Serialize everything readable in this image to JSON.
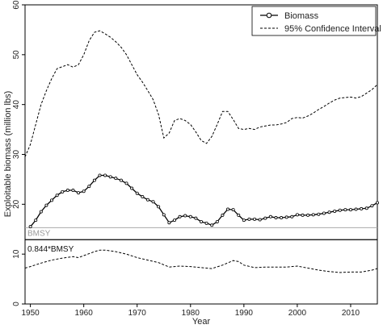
{
  "chart_data": {
    "type": "line",
    "xlabel": "Year",
    "ylabel": "Exploitable biomass (million lbs)",
    "xlim": [
      1949,
      2015
    ],
    "ylim": [
      0,
      60
    ],
    "xticks": [
      1950,
      1960,
      1970,
      1980,
      1990,
      2000,
      2010
    ],
    "yticks": [
      0,
      10,
      20,
      30,
      40,
      50,
      60
    ],
    "legend": {
      "position": "top-right"
    },
    "colors": {
      "biomass": "#000000",
      "ci": "#000000",
      "bmsy": "#aaaaaa",
      "bmsy_844": "#000000"
    },
    "series": [
      {
        "name": "Biomass",
        "style": "solid-circles",
        "x": [
          1950,
          1951,
          1952,
          1953,
          1954,
          1955,
          1956,
          1957,
          1958,
          1959,
          1960,
          1961,
          1962,
          1963,
          1964,
          1965,
          1966,
          1967,
          1968,
          1969,
          1970,
          1971,
          1972,
          1973,
          1974,
          1975,
          1976,
          1977,
          1978,
          1979,
          1980,
          1981,
          1982,
          1983,
          1984,
          1985,
          1986,
          1987,
          1988,
          1989,
          1990,
          1991,
          1992,
          1993,
          1994,
          1995,
          1996,
          1997,
          1998,
          1999,
          2000,
          2001,
          2002,
          2003,
          2004,
          2005,
          2006,
          2007,
          2008,
          2009,
          2010,
          2011,
          2012,
          2013,
          2014,
          2015
        ],
        "values": [
          15.5,
          16.8,
          18.5,
          19.8,
          20.8,
          21.8,
          22.5,
          22.8,
          22.8,
          22.3,
          22.6,
          23.6,
          24.8,
          25.8,
          25.8,
          25.5,
          25.2,
          24.8,
          24.2,
          23.2,
          22.2,
          21.5,
          20.9,
          20.5,
          19.5,
          17.9,
          16.3,
          16.8,
          17.5,
          17.7,
          17.5,
          17.2,
          16.5,
          16.2,
          15.8,
          16.5,
          17.8,
          19.0,
          18.9,
          17.8,
          16.8,
          17.0,
          17.0,
          16.9,
          17.2,
          17.5,
          17.3,
          17.3,
          17.4,
          17.5,
          17.9,
          17.8,
          17.8,
          17.9,
          18.0,
          18.2,
          18.4,
          18.6,
          18.8,
          18.9,
          18.9,
          19.0,
          19.1,
          19.2,
          19.7,
          20.3
        ]
      },
      {
        "name": "95% Confidence Interval",
        "style": "dashed",
        "bound": "upper",
        "x": [
          1949,
          1950,
          1951,
          1952,
          1953,
          1954,
          1955,
          1956,
          1957,
          1958,
          1959,
          1960,
          1961,
          1962,
          1963,
          1964,
          1965,
          1966,
          1967,
          1968,
          1969,
          1970,
          1971,
          1972,
          1973,
          1974,
          1975,
          1976,
          1977,
          1978,
          1979,
          1980,
          1981,
          1982,
          1983,
          1984,
          1985,
          1986,
          1987,
          1988,
          1989,
          1990,
          1991,
          1992,
          1993,
          1994,
          1995,
          1996,
          1997,
          1998,
          1999,
          2000,
          2001,
          2002,
          2003,
          2004,
          2005,
          2006,
          2007,
          2008,
          2009,
          2010,
          2011,
          2012,
          2013,
          2014,
          2015
        ],
        "values": [
          29.5,
          32.0,
          36.0,
          40.0,
          42.8,
          45.2,
          47.2,
          47.6,
          48.0,
          47.5,
          48.0,
          50.0,
          52.8,
          54.5,
          54.8,
          54.2,
          53.5,
          52.6,
          51.5,
          50.0,
          48.0,
          46.0,
          44.5,
          42.8,
          41.0,
          38.0,
          33.3,
          34.3,
          36.8,
          37.2,
          36.8,
          36.0,
          34.5,
          32.8,
          32.2,
          33.6,
          36.0,
          38.6,
          38.6,
          37.0,
          35.2,
          35.0,
          35.2,
          35.0,
          35.5,
          35.7,
          35.9,
          35.9,
          36.1,
          36.4,
          37.2,
          37.4,
          37.3,
          37.7,
          38.3,
          39.0,
          39.6,
          40.3,
          40.9,
          41.3,
          41.4,
          41.5,
          41.3,
          41.6,
          42.3,
          43.0,
          44.0
        ]
      },
      {
        "name": "",
        "style": "dashed",
        "bound": "lower",
        "x": [
          1949,
          1950,
          1952,
          1954,
          1956,
          1958,
          1959,
          1960,
          1962,
          1963,
          1964,
          1966,
          1968,
          1970,
          1972,
          1974,
          1976,
          1978,
          1980,
          1982,
          1984,
          1986,
          1988,
          1989,
          1990,
          1992,
          1994,
          1996,
          1998,
          2000,
          2002,
          2004,
          2006,
          2008,
          2010,
          2012,
          2014,
          2015
        ],
        "values": [
          7.2,
          7.5,
          8.2,
          8.8,
          9.2,
          9.5,
          9.3,
          9.7,
          10.5,
          10.8,
          10.8,
          10.5,
          10.0,
          9.3,
          8.8,
          8.3,
          7.4,
          7.6,
          7.5,
          7.3,
          7.1,
          7.8,
          8.7,
          8.5,
          7.8,
          7.3,
          7.4,
          7.4,
          7.4,
          7.6,
          7.2,
          6.8,
          6.5,
          6.3,
          6.4,
          6.4,
          6.8,
          7.1
        ]
      }
    ],
    "reference_lines": [
      {
        "label": "BMSY",
        "value": 15.3,
        "style": "solid-gray"
      },
      {
        "label": "0.844*BMSY",
        "value": 12.9,
        "style": "solid-black"
      }
    ]
  }
}
